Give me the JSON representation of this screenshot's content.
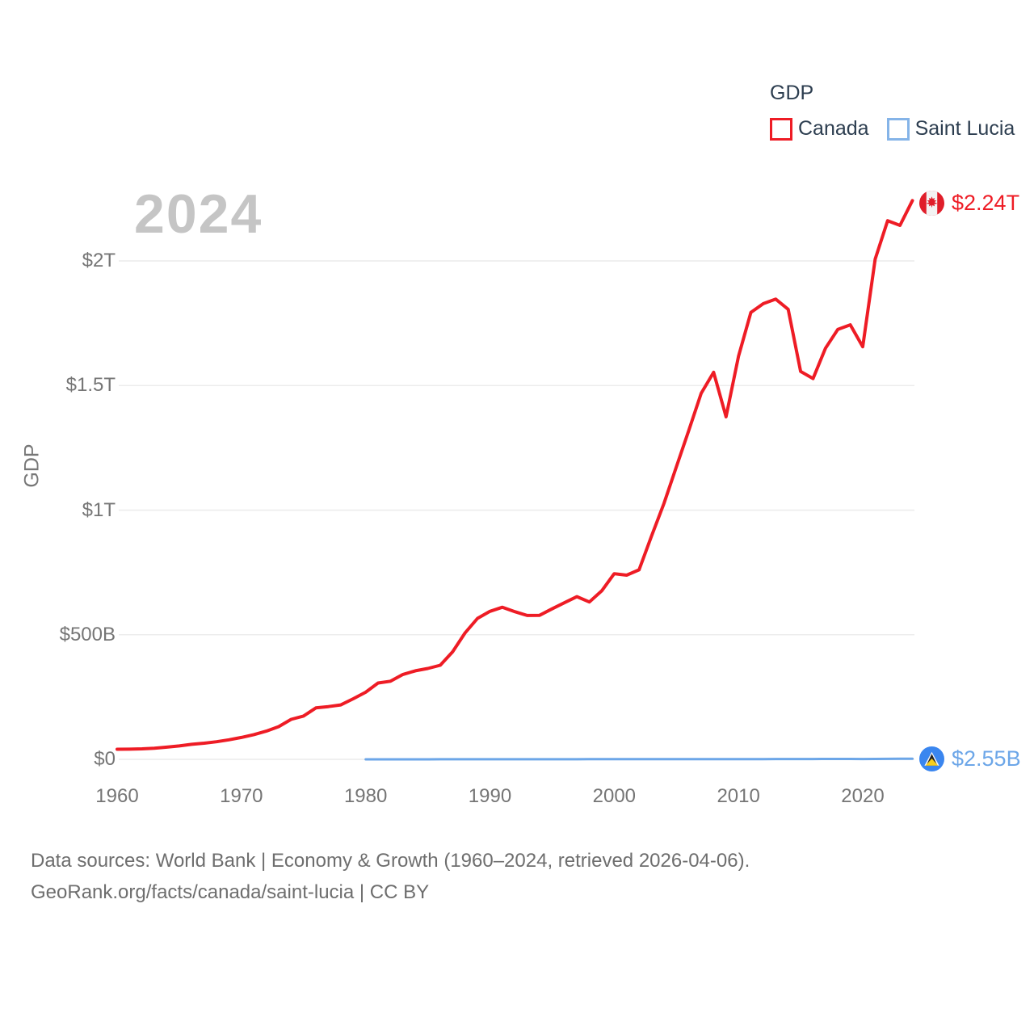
{
  "page": {
    "background": "#ffffff"
  },
  "watermark": "2024",
  "legend": {
    "title": "GDP",
    "items": [
      {
        "label": "Canada",
        "color": "#ee1c25"
      },
      {
        "label": "Saint Lucia",
        "color": "#85b4e8"
      }
    ]
  },
  "y_axis_title": "GDP",
  "end_labels": {
    "canada": {
      "value": "$2.24T",
      "color": "#ee1c25",
      "flag": "canada-flag"
    },
    "saint_lucia": {
      "value": "$2.55B",
      "color": "#6ca6e8",
      "flag": "saint-lucia-flag"
    }
  },
  "footer": {
    "line1": "Data sources: World Bank | Economy & Growth (1960–2024, retrieved 2026-04-06).",
    "line2": "GeoRank.org/facts/canada/saint-lucia | CC BY"
  },
  "chart_data": {
    "type": "line",
    "title": "GDP",
    "ylabel": "GDP",
    "unit": "billions USD",
    "grid": true,
    "legend_position": "top-right",
    "x_range": [
      1960,
      2024
    ],
    "ylim_billions": [
      0,
      2240
    ],
    "x_ticks": [
      1960,
      1970,
      1980,
      1990,
      2000,
      2010,
      2020
    ],
    "y_ticks": [
      {
        "label": "$0",
        "value": 0
      },
      {
        "label": "$500B",
        "value": 500
      },
      {
        "label": "$1T",
        "value": 1000
      },
      {
        "label": "$1.5T",
        "value": 1500
      },
      {
        "label": "$2T",
        "value": 2000
      }
    ],
    "series": [
      {
        "name": "Canada",
        "color": "#ee1c25",
        "stroke_width": 4,
        "x_start": 1960,
        "end_value_label": "$2.24T",
        "values_billions": [
          40.5,
          40.9,
          42.2,
          44.7,
          48.9,
          53.9,
          60.4,
          64.8,
          70.8,
          78.6,
          87.8,
          99.3,
          113.1,
          131.3,
          160.4,
          173.8,
          206.6,
          211.6,
          218.6,
          243.1,
          269.5,
          306.2,
          313.5,
          340.7,
          355.4,
          364.8,
          377.7,
          431.3,
          507.4,
          565.8,
          593.9,
          610.3,
          592.4,
          577.2,
          578.1,
          604.0,
          628.6,
          652.8,
          631.4,
          676.1,
          744.8,
          739.0,
          760.6,
          895.5,
          1026.7,
          1173.1,
          1319.3,
          1468.8,
          1553.0,
          1374.6,
          1617.3,
          1793.3,
          1828.4,
          1846.6,
          1805.8,
          1556.5,
          1528.0,
          1649.3,
          1725.3,
          1743.7,
          1655.7,
          2007.5,
          2161.5,
          2142.5,
          2242.0
        ]
      },
      {
        "name": "Saint Lucia",
        "color": "#6ca6e8",
        "stroke_width": 3,
        "x_start": 1980,
        "end_value_label": "$2.55B",
        "values_billions": [
          0.09,
          0.1,
          0.11,
          0.12,
          0.14,
          0.15,
          0.18,
          0.21,
          0.24,
          0.27,
          0.32,
          0.34,
          0.37,
          0.39,
          0.41,
          0.43,
          0.45,
          0.46,
          0.49,
          0.52,
          0.55,
          0.54,
          0.55,
          0.59,
          0.65,
          0.69,
          0.76,
          0.82,
          0.86,
          0.84,
          1.08,
          1.1,
          1.12,
          1.16,
          1.22,
          1.32,
          1.38,
          1.47,
          1.59,
          1.72,
          1.38,
          1.69,
          2.09,
          2.43,
          2.55
        ]
      }
    ]
  }
}
